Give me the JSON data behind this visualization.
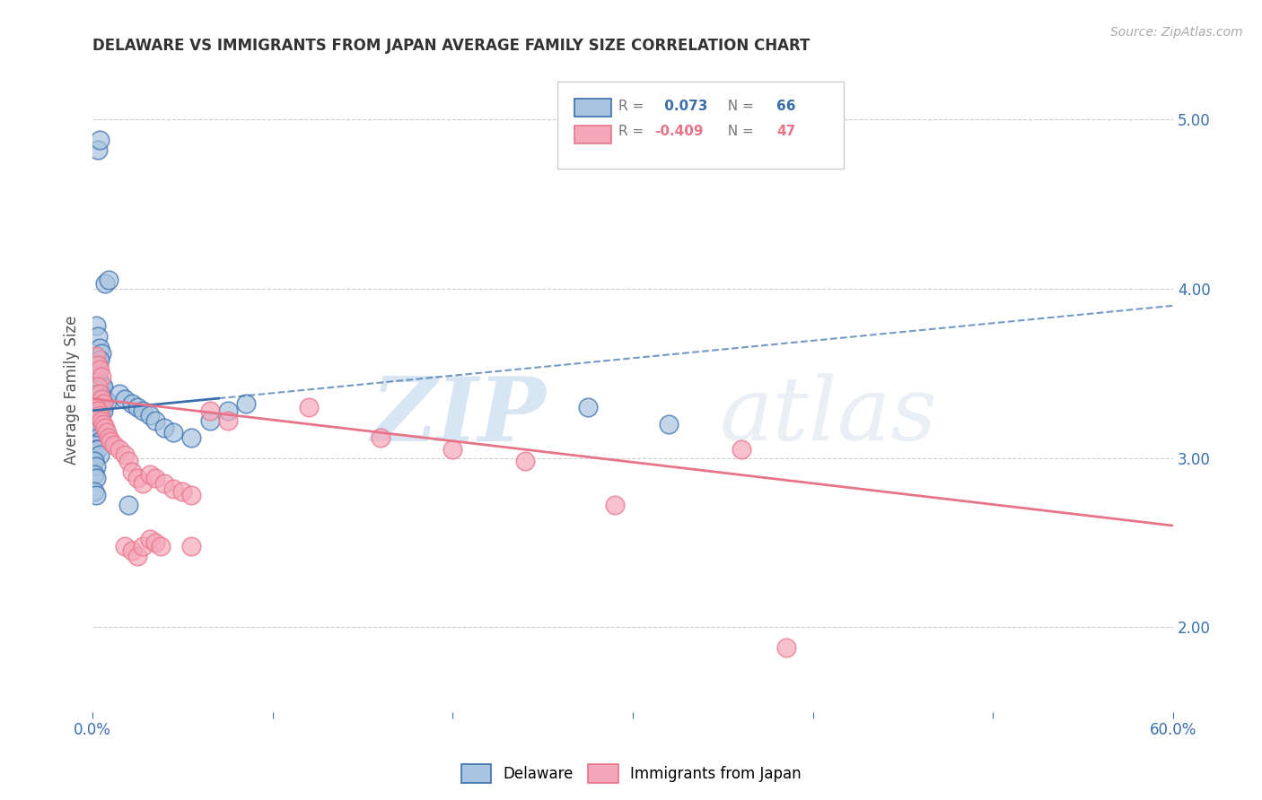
{
  "title": "DELAWARE VS IMMIGRANTS FROM JAPAN AVERAGE FAMILY SIZE CORRELATION CHART",
  "source": "Source: ZipAtlas.com",
  "ylabel": "Average Family Size",
  "xlim": [
    0.0,
    0.6
  ],
  "ylim": [
    1.5,
    5.3
  ],
  "yticks": [
    2.0,
    3.0,
    4.0,
    5.0
  ],
  "xticks": [
    0.0,
    0.1,
    0.2,
    0.3,
    0.4,
    0.5,
    0.6
  ],
  "xticklabels": [
    "0.0%",
    "",
    "",
    "",
    "",
    "",
    "60.0%"
  ],
  "legend_labels": [
    "Delaware",
    "Immigrants from Japan"
  ],
  "delaware_color": "#a8c4e0",
  "japan_color": "#f4a7b9",
  "delaware_line_color": "#3a6fad",
  "japan_line_color": "#e8748a",
  "r_delaware": "0.073",
  "n_delaware": "66",
  "r_japan": "-0.409",
  "n_japan": "47",
  "watermark_zip": "ZIP",
  "watermark_atlas": "atlas",
  "background_color": "#ffffff",
  "delaware_points": [
    [
      0.003,
      4.82
    ],
    [
      0.004,
      4.88
    ],
    [
      0.007,
      4.03
    ],
    [
      0.009,
      4.05
    ],
    [
      0.002,
      3.78
    ],
    [
      0.003,
      3.72
    ],
    [
      0.004,
      3.65
    ],
    [
      0.005,
      3.62
    ],
    [
      0.003,
      3.55
    ],
    [
      0.004,
      3.58
    ],
    [
      0.001,
      3.5
    ],
    [
      0.002,
      3.48
    ],
    [
      0.003,
      3.48
    ],
    [
      0.004,
      3.45
    ],
    [
      0.005,
      3.43
    ],
    [
      0.006,
      3.42
    ],
    [
      0.001,
      3.4
    ],
    [
      0.002,
      3.4
    ],
    [
      0.003,
      3.38
    ],
    [
      0.004,
      3.38
    ],
    [
      0.005,
      3.36
    ],
    [
      0.006,
      3.35
    ],
    [
      0.007,
      3.35
    ],
    [
      0.008,
      3.33
    ],
    [
      0.001,
      3.32
    ],
    [
      0.002,
      3.3
    ],
    [
      0.003,
      3.3
    ],
    [
      0.004,
      3.3
    ],
    [
      0.005,
      3.28
    ],
    [
      0.006,
      3.28
    ],
    [
      0.001,
      3.25
    ],
    [
      0.002,
      3.25
    ],
    [
      0.003,
      3.22
    ],
    [
      0.004,
      3.2
    ],
    [
      0.005,
      3.18
    ],
    [
      0.006,
      3.18
    ],
    [
      0.001,
      3.15
    ],
    [
      0.002,
      3.15
    ],
    [
      0.003,
      3.12
    ],
    [
      0.004,
      3.1
    ],
    [
      0.001,
      3.08
    ],
    [
      0.002,
      3.05
    ],
    [
      0.003,
      3.05
    ],
    [
      0.004,
      3.02
    ],
    [
      0.001,
      2.98
    ],
    [
      0.002,
      2.95
    ],
    [
      0.001,
      2.9
    ],
    [
      0.002,
      2.88
    ],
    [
      0.001,
      2.8
    ],
    [
      0.002,
      2.78
    ],
    [
      0.015,
      3.38
    ],
    [
      0.018,
      3.35
    ],
    [
      0.022,
      3.32
    ],
    [
      0.025,
      3.3
    ],
    [
      0.028,
      3.28
    ],
    [
      0.032,
      3.25
    ],
    [
      0.035,
      3.22
    ],
    [
      0.04,
      3.18
    ],
    [
      0.045,
      3.15
    ],
    [
      0.055,
      3.12
    ],
    [
      0.065,
      3.22
    ],
    [
      0.075,
      3.28
    ],
    [
      0.085,
      3.32
    ],
    [
      0.02,
      2.72
    ],
    [
      0.275,
      3.3
    ],
    [
      0.32,
      3.2
    ]
  ],
  "japan_points": [
    [
      0.002,
      3.6
    ],
    [
      0.003,
      3.55
    ],
    [
      0.004,
      3.52
    ],
    [
      0.005,
      3.48
    ],
    [
      0.003,
      3.42
    ],
    [
      0.004,
      3.38
    ],
    [
      0.005,
      3.35
    ],
    [
      0.006,
      3.32
    ],
    [
      0.002,
      3.3
    ],
    [
      0.003,
      3.28
    ],
    [
      0.004,
      3.25
    ],
    [
      0.005,
      3.22
    ],
    [
      0.006,
      3.2
    ],
    [
      0.007,
      3.18
    ],
    [
      0.008,
      3.15
    ],
    [
      0.009,
      3.12
    ],
    [
      0.01,
      3.1
    ],
    [
      0.012,
      3.08
    ],
    [
      0.015,
      3.05
    ],
    [
      0.018,
      3.02
    ],
    [
      0.02,
      2.98
    ],
    [
      0.022,
      2.92
    ],
    [
      0.025,
      2.88
    ],
    [
      0.028,
      2.85
    ],
    [
      0.032,
      2.9
    ],
    [
      0.035,
      2.88
    ],
    [
      0.04,
      2.85
    ],
    [
      0.045,
      2.82
    ],
    [
      0.05,
      2.8
    ],
    [
      0.055,
      2.78
    ],
    [
      0.018,
      2.48
    ],
    [
      0.022,
      2.45
    ],
    [
      0.025,
      2.42
    ],
    [
      0.028,
      2.48
    ],
    [
      0.032,
      2.52
    ],
    [
      0.035,
      2.5
    ],
    [
      0.038,
      2.48
    ],
    [
      0.055,
      2.48
    ],
    [
      0.065,
      3.28
    ],
    [
      0.075,
      3.22
    ],
    [
      0.12,
      3.3
    ],
    [
      0.16,
      3.12
    ],
    [
      0.2,
      3.05
    ],
    [
      0.24,
      2.98
    ],
    [
      0.29,
      2.72
    ],
    [
      0.36,
      3.05
    ],
    [
      0.385,
      1.88
    ]
  ]
}
